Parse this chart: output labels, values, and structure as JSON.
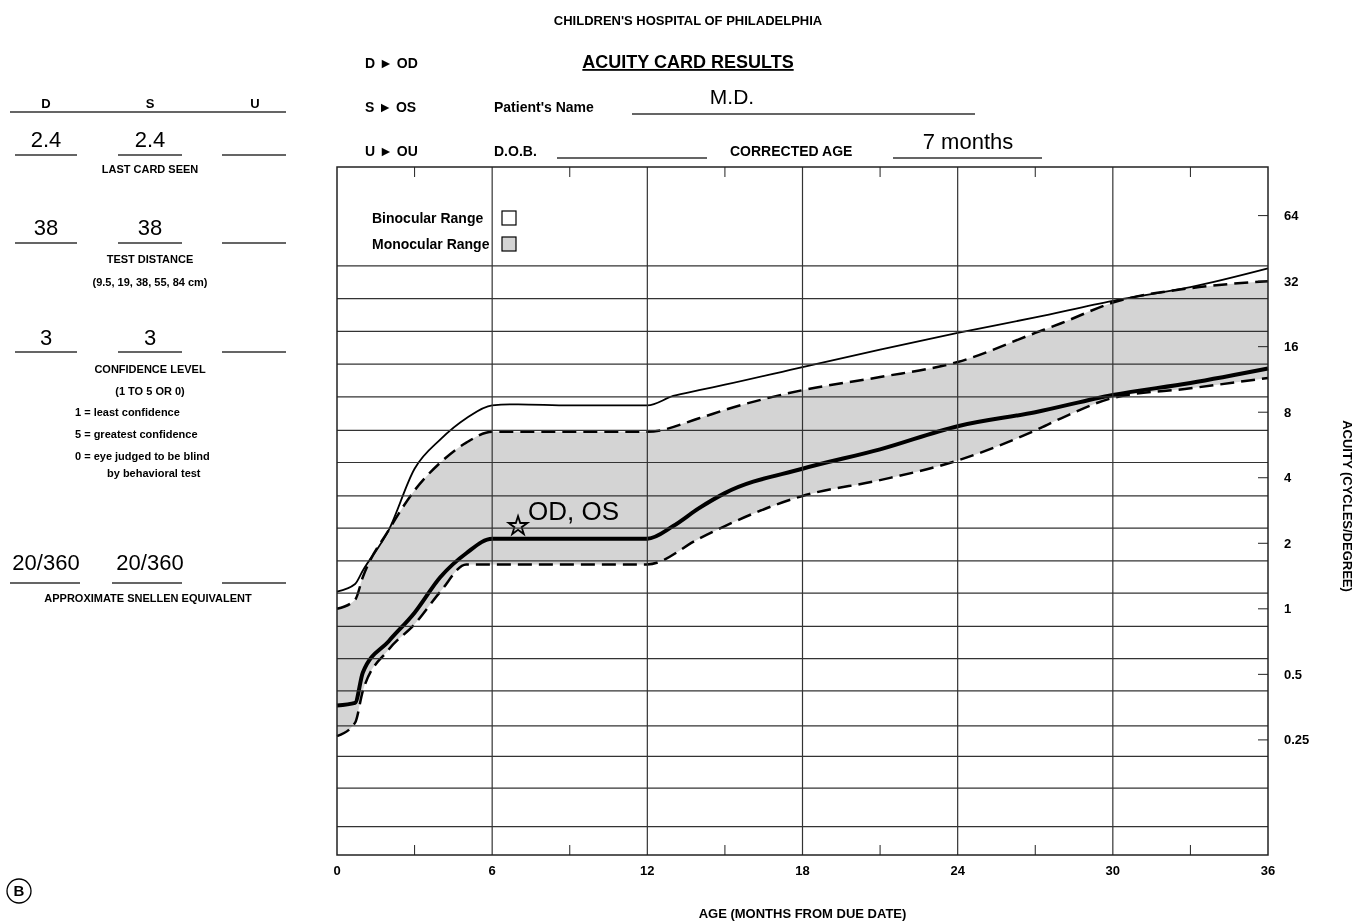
{
  "chart_data": {
    "type": "line",
    "title": "ACUITY CARD RESULTS",
    "xlabel": "AGE (MONTHS FROM DUE DATE)",
    "ylabel": "ACUITY (CYCLES/DEGREE)",
    "log": "y",
    "xlim": [
      0,
      36
    ],
    "xticks": [
      0,
      {
        "value": 3,
        "label": null
      },
      6,
      {
        "value": 9,
        "label": null
      },
      12,
      {
        "value": 15,
        "label": null
      },
      18,
      {
        "value": 21,
        "label": null
      },
      24,
      {
        "value": 27,
        "label": null
      },
      30,
      {
        "value": 33,
        "label": null
      },
      36
    ],
    "ylim": [
      0.074,
      107
    ],
    "yticks": [
      64,
      32,
      16,
      8,
      4,
      2,
      1,
      0.5,
      0.25,
      {
        "value": 37.6,
        "label": null
      },
      {
        "value": 26.6,
        "label": null
      },
      {
        "value": 18.8,
        "label": null
      },
      {
        "value": 13.3,
        "label": null
      },
      {
        "value": 9.4,
        "label": null
      },
      {
        "value": 6.6,
        "label": null
      },
      {
        "value": 4.7,
        "label": null
      },
      {
        "value": 3.3,
        "label": null
      },
      {
        "value": 2.35,
        "label": null
      },
      {
        "value": 1.66,
        "label": null
      },
      {
        "value": 1.18,
        "label": null
      },
      {
        "value": 0.83,
        "label": null
      },
      {
        "value": 0.59,
        "label": null
      },
      {
        "value": 0.42,
        "label": null
      },
      {
        "value": 0.29,
        "label": null
      },
      {
        "value": 0.21,
        "label": null
      },
      {
        "value": 0.15,
        "label": null
      },
      {
        "value": 0.1,
        "label": null
      }
    ],
    "grid": true,
    "legend": "top left",
    "series": [
      {
        "name": "Binocular Range",
        "color": "#000000",
        "x": [
          0,
          0.7,
          1,
          2,
          3,
          4,
          5,
          6,
          7,
          9,
          12,
          13,
          14,
          15,
          18,
          21,
          24,
          27,
          30,
          33,
          36
        ],
        "values": [
          1.2,
          1.3,
          1.5,
          2.3,
          4.4,
          6.0,
          7.5,
          8.6,
          8.7,
          8.6,
          8.6,
          9.5,
          10.1,
          10.7,
          12.9,
          15.5,
          18.5,
          21.8,
          26,
          30,
          36.6
        ]
      },
      {
        "name": "Monocular Range",
        "color": "#000000",
        "line_style": "dashed",
        "x": [
          0,
          0.7,
          1,
          2,
          3,
          4,
          5,
          6,
          12,
          14,
          15,
          18,
          21,
          24,
          27,
          28,
          30,
          33,
          36
        ],
        "values": [
          1.0,
          1.1,
          1.4,
          2.3,
          3.5,
          4.7,
          5.8,
          6.5,
          6.5,
          7.5,
          8.2,
          10.1,
          11.6,
          13.6,
          18.5,
          20.5,
          25.5,
          29.7,
          32
        ],
        "lower": [
          0.26,
          0.3,
          0.42,
          0.65,
          0.85,
          1.2,
          1.6,
          1.6,
          1.6,
          2.1,
          2.4,
          3.3,
          3.9,
          4.8,
          6.6,
          7.5,
          9.3,
          10.3,
          11.5
        ],
        "upper": [
          1.0,
          1.1,
          1.4,
          2.3,
          3.5,
          4.7,
          5.8,
          6.5,
          6.5,
          7.5,
          8.2,
          10.1,
          11.6,
          13.6,
          18.5,
          20.5,
          25.5,
          29.7,
          32
        ]
      },
      {
        "color": "#000000",
        "line_style": "dashed",
        "x": [
          0,
          0.7,
          1,
          2,
          3,
          4,
          5,
          6,
          12,
          14,
          15,
          18,
          21,
          24,
          27,
          28,
          30,
          33,
          36
        ],
        "values": [
          0.26,
          0.3,
          0.42,
          0.65,
          0.85,
          1.2,
          1.6,
          1.6,
          1.6,
          2.1,
          2.4,
          3.3,
          3.9,
          4.8,
          6.6,
          7.5,
          9.3,
          10.3,
          11.5
        ]
      },
      {
        "color": "#000000",
        "line_style": "solid",
        "x": [
          0,
          0.7,
          1,
          2,
          3,
          4,
          5,
          6,
          7,
          9,
          12,
          13,
          14,
          15,
          18,
          21,
          24,
          27,
          30,
          33,
          36
        ],
        "values": [
          0.36,
          0.37,
          0.51,
          0.71,
          0.96,
          1.4,
          1.8,
          2.1,
          2.1,
          2.1,
          2.1,
          2.4,
          2.9,
          3.4,
          4.4,
          5.4,
          6.9,
          8.0,
          9.6,
          10.9,
          12.7
        ]
      },
      {
        "type": "scatter",
        "marker": "star",
        "color": "#000000",
        "x": [
          7
        ],
        "values": [
          2.4
        ]
      }
    ],
    "annotations": [
      "D ► OD",
      "S ► OS",
      "U ► OU",
      "CHILDREN'S HOSPITAL OF PHILADELPHIA",
      "Patient's Name",
      "M.D.",
      "D.O.B.",
      "CORRECTED AGE",
      "7 months",
      "D",
      "S",
      "U",
      "2.4",
      "2.4",
      "LAST CARD SEEN",
      "38",
      "38",
      "TEST DISTANCE",
      "(9.5, 19, 38, 55, 84 cm)",
      "3",
      "3",
      "CONFIDENCE LEVEL",
      "(1 TO 5 OR 0)",
      "1 = least confidence",
      "5 = greatest confidence",
      "0 = eye judged to be blind",
      "by behavioral test",
      "20/360",
      "20/360",
      "APPROXIMATE SNELLEN EQUIVALENT",
      "B",
      {
        "text": "OD, OS",
        "x": 7,
        "y": 2.4
      }
    ]
  }
}
